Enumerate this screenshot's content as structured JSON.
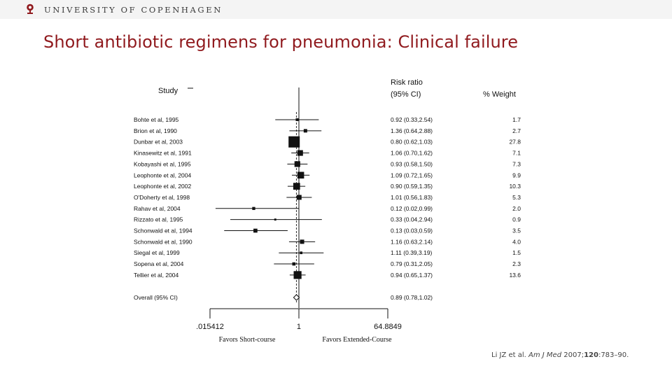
{
  "header": {
    "university": "UNIVERSITY OF COPENHAGEN",
    "logo_icon": "university-seal-icon",
    "accent": "#901a1e"
  },
  "slide": {
    "title": "Short antibiotic regimens for pneumonia: Clinical failure"
  },
  "citation": {
    "authors": "Li JZ et al.",
    "journal": "Am J Med",
    "year": "2007;",
    "volume": "120",
    "pages": ":783–90."
  },
  "chart_data": {
    "type": "forest",
    "columns": {
      "study": "Study",
      "ratio_line1": "Risk ratio",
      "ratio_line2": "(95% CI)",
      "weight": "% Weight"
    },
    "scale": "log",
    "axis_ticks": [
      ".015412",
      "1",
      "64.8849"
    ],
    "xlim": [
      0.015412,
      64.8849
    ],
    "axis_labels": {
      "left": "Favors Short-course",
      "right": "Favors Extended-Course"
    },
    "studies": [
      {
        "name": "Bohte et al, 1995",
        "rr": 0.92,
        "lo": 0.33,
        "hi": 2.54,
        "ci_text": "0.92 (0.33,2.54)",
        "weight": 1.7,
        "weight_text": "1.7"
      },
      {
        "name": "Brion et al, 1990",
        "rr": 1.36,
        "lo": 0.64,
        "hi": 2.88,
        "ci_text": "1.36 (0.64,2.88)",
        "weight": 2.7,
        "weight_text": "2.7"
      },
      {
        "name": "Dunbar et al, 2003",
        "rr": 0.8,
        "lo": 0.62,
        "hi": 1.03,
        "ci_text": "0.80 (0.62,1.03)",
        "weight": 27.8,
        "weight_text": "27.8"
      },
      {
        "name": "Kinasewitz et al, 1991",
        "rr": 1.06,
        "lo": 0.7,
        "hi": 1.62,
        "ci_text": "1.06 (0.70,1.62)",
        "weight": 7.1,
        "weight_text": "7.1"
      },
      {
        "name": "Kobayashi et al, 1995",
        "rr": 0.93,
        "lo": 0.58,
        "hi": 1.5,
        "ci_text": "0.93 (0.58,1.50)",
        "weight": 7.3,
        "weight_text": "7.3"
      },
      {
        "name": "Leophonte et al, 2004",
        "rr": 1.09,
        "lo": 0.72,
        "hi": 1.65,
        "ci_text": "1.09 (0.72,1.65)",
        "weight": 9.9,
        "weight_text": "9.9"
      },
      {
        "name": "Leophonte et al, 2002",
        "rr": 0.9,
        "lo": 0.59,
        "hi": 1.35,
        "ci_text": "0.90 (0.59,1.35)",
        "weight": 10.3,
        "weight_text": "10.3"
      },
      {
        "name": "O'Doherty et al, 1998",
        "rr": 1.01,
        "lo": 0.56,
        "hi": 1.83,
        "ci_text": "1.01 (0.56,1.83)",
        "weight": 5.3,
        "weight_text": "5.3"
      },
      {
        "name": "Rahav et al, 2004",
        "rr": 0.12,
        "lo": 0.02,
        "hi": 0.99,
        "ci_text": "0.12 (0.02,0.99)",
        "weight": 2.0,
        "weight_text": "2.0"
      },
      {
        "name": "Rizzato et al, 1995",
        "rr": 0.33,
        "lo": 0.04,
        "hi": 2.94,
        "ci_text": "0.33 (0.04,2.94)",
        "weight": 0.9,
        "weight_text": "0.9"
      },
      {
        "name": "Schonwald et al, 1994",
        "rr": 0.13,
        "lo": 0.03,
        "hi": 0.59,
        "ci_text": "0.13 (0.03,0.59)",
        "weight": 3.5,
        "weight_text": "3.5"
      },
      {
        "name": "Schonwald et al, 1990",
        "rr": 1.16,
        "lo": 0.63,
        "hi": 2.14,
        "ci_text": "1.16 (0.63,2.14)",
        "weight": 4.0,
        "weight_text": "4.0"
      },
      {
        "name": "Siegal et al, 1999",
        "rr": 1.11,
        "lo": 0.39,
        "hi": 3.19,
        "ci_text": "1.11 (0.39,3.19)",
        "weight": 1.5,
        "weight_text": "1.5"
      },
      {
        "name": "Sopena et al, 2004",
        "rr": 0.79,
        "lo": 0.31,
        "hi": 2.05,
        "ci_text": "0.79 (0.31,2.05)",
        "weight": 2.3,
        "weight_text": "2.3"
      },
      {
        "name": "Tellier et al, 2004",
        "rr": 0.94,
        "lo": 0.65,
        "hi": 1.37,
        "ci_text": "0.94 (0.65,1.37)",
        "weight": 13.6,
        "weight_text": "13.6"
      }
    ],
    "overall": {
      "name": "Overall (95% CI)",
      "rr": 0.89,
      "lo": 0.78,
      "hi": 1.02,
      "ci_text": "0.89 (0.78,1.02)"
    },
    "reference_line": 1,
    "pooled_line": 0.89
  }
}
